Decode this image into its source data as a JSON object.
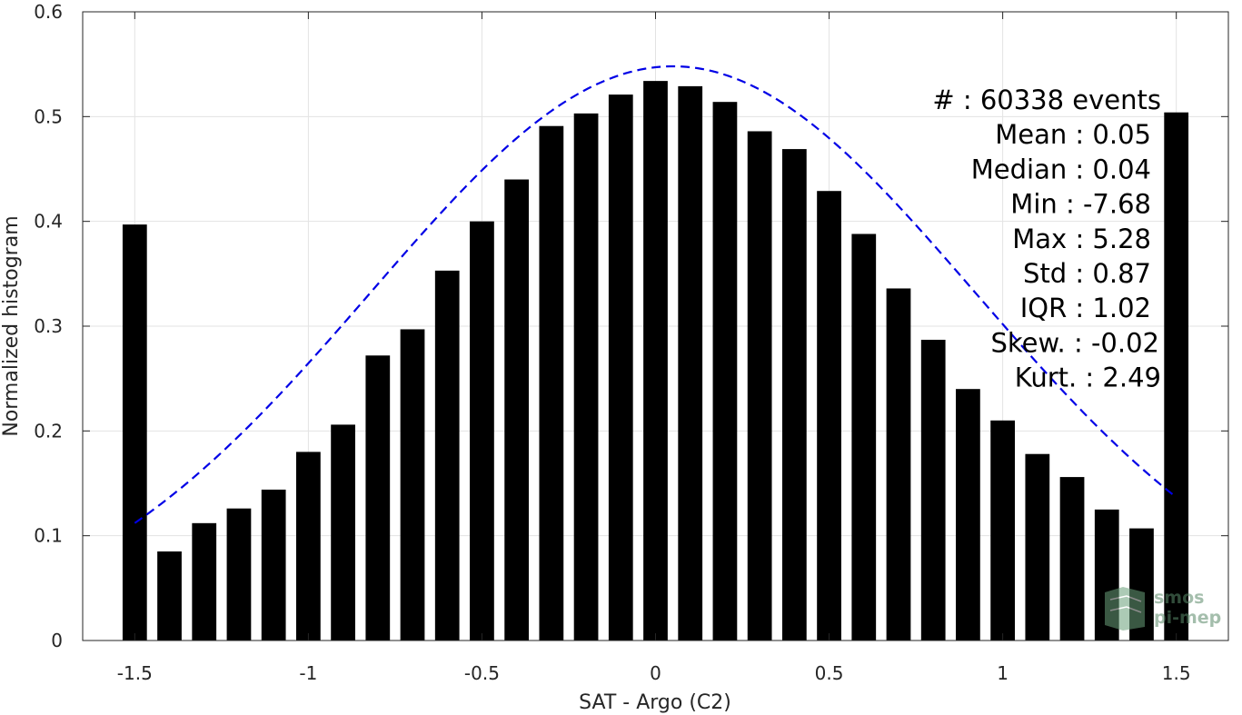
{
  "chart_data": {
    "type": "bar",
    "xlabel": "SAT - Argo (C2)",
    "ylabel": "Normalized histogram",
    "xlim": [
      -1.65,
      1.65
    ],
    "ylim": [
      0,
      0.6
    ],
    "xticks": [
      -1.5,
      -1,
      -0.5,
      0,
      0.5,
      1,
      1.5
    ],
    "xtick_labels": [
      "-1.5",
      "-1",
      "-0.5",
      "0",
      "0.5",
      "1",
      "1.5"
    ],
    "yticks": [
      0,
      0.1,
      0.2,
      0.3,
      0.4,
      0.5,
      0.6
    ],
    "ytick_labels": [
      "0",
      "0.1",
      "0.2",
      "0.3",
      "0.4",
      "0.5",
      "0.6"
    ],
    "grid": true,
    "bar_color": "#000000",
    "bar_width": 0.07,
    "x": [
      -1.5,
      -1.4,
      -1.3,
      -1.2,
      -1.1,
      -1.0,
      -0.9,
      -0.8,
      -0.7,
      -0.6,
      -0.5,
      -0.4,
      -0.3,
      -0.2,
      -0.1,
      0.0,
      0.1,
      0.2,
      0.3,
      0.4,
      0.5,
      0.6,
      0.7,
      0.8,
      0.9,
      1.0,
      1.1,
      1.2,
      1.3,
      1.4,
      1.5
    ],
    "values": [
      0.397,
      0.085,
      0.112,
      0.126,
      0.144,
      0.18,
      0.206,
      0.272,
      0.297,
      0.353,
      0.4,
      0.44,
      0.491,
      0.503,
      0.521,
      0.534,
      0.529,
      0.514,
      0.486,
      0.469,
      0.429,
      0.388,
      0.336,
      0.287,
      0.24,
      0.21,
      0.178,
      0.156,
      0.125,
      0.107,
      0.504
    ],
    "fit_curve": {
      "style": "dashed",
      "color": "#0000e6",
      "mean": 0.05,
      "std": 0.87,
      "amplitude": 0.548,
      "x_range": [
        -1.5,
        1.5
      ]
    },
    "stats_lines": [
      "#  : 60338 events",
      "Mean : 0.05",
      "Median : 0.04",
      "Min : -7.68",
      "Max : 5.28",
      "Std : 0.87",
      "IQR : 1.02",
      "Skew. : -0.02",
      "Kurt. : 2.49"
    ],
    "logo": {
      "line1": "smos",
      "line2": "pi-mep"
    }
  }
}
